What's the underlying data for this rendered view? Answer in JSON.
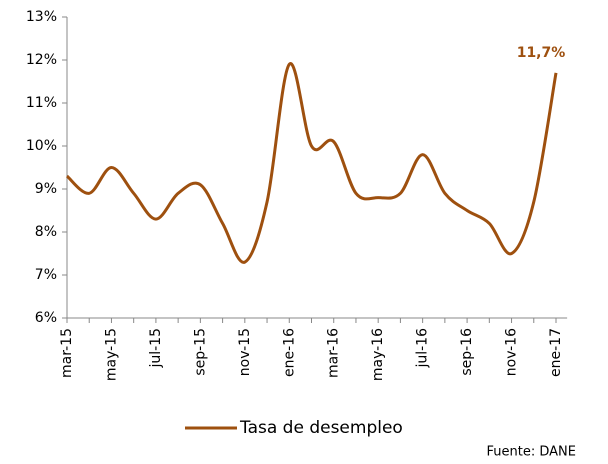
{
  "chart_data": {
    "type": "line",
    "categories": [
      "mar-15",
      null,
      "may-15",
      null,
      "jul-15",
      null,
      "sep-15",
      null,
      "nov-15",
      null,
      "ene-16",
      null,
      "mar-16",
      null,
      "may-16",
      null,
      "jul-16",
      null,
      "sep-16",
      null,
      "nov-16",
      null,
      "ene-17"
    ],
    "series": [
      {
        "name": "Tasa de desempleo",
        "color": "#9e500f",
        "values": [
          9.3,
          8.9,
          9.5,
          8.9,
          8.3,
          8.9,
          9.1,
          8.2,
          7.3,
          8.7,
          11.9,
          10.0,
          10.1,
          8.9,
          8.8,
          8.9,
          9.8,
          8.9,
          8.5,
          8.2,
          7.5,
          8.7,
          11.7
        ],
        "value_labels": [
          null,
          null,
          null,
          null,
          null,
          null,
          null,
          null,
          null,
          null,
          null,
          null,
          null,
          null,
          null,
          null,
          null,
          null,
          null,
          null,
          null,
          null,
          "11,7%"
        ]
      }
    ],
    "ylim": [
      6,
      13
    ],
    "yticks": [
      {
        "value": 6,
        "label": "6%"
      },
      {
        "value": 7,
        "label": "7%"
      },
      {
        "value": 8,
        "label": "8%"
      },
      {
        "value": 9,
        "label": "9%"
      },
      {
        "value": 10,
        "label": "10%"
      },
      {
        "value": 11,
        "label": "11%"
      },
      {
        "value": 12,
        "label": "12%"
      },
      {
        "value": 13,
        "label": "13%"
      }
    ],
    "grid": false,
    "legend": "bottom",
    "source": "Fuente: DANE"
  }
}
